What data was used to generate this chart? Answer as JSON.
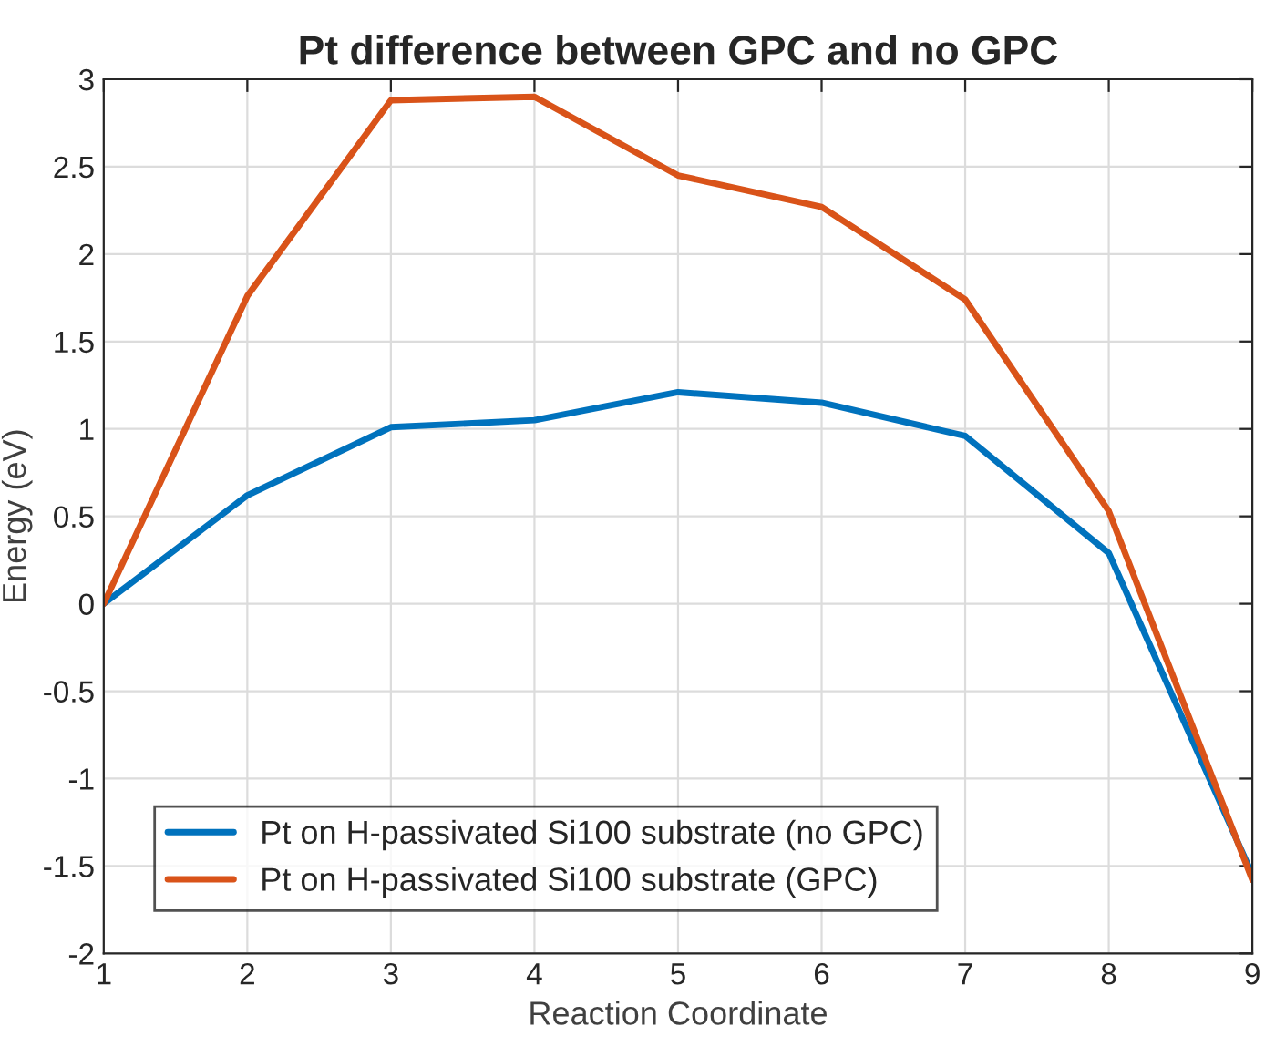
{
  "chart_data": {
    "type": "line",
    "title": "Pt difference between GPC and no GPC",
    "xlabel": "Reaction Coordinate",
    "ylabel": "Energy (eV)",
    "x": [
      1,
      2,
      3,
      4,
      5,
      6,
      7,
      8,
      9
    ],
    "series": [
      {
        "name": "Pt on H-passivated Si100 substrate (no GPC)",
        "color": "#0072bd",
        "values": [
          0,
          0.62,
          1.01,
          1.05,
          1.21,
          1.15,
          0.96,
          0.29,
          -1.55
        ]
      },
      {
        "name": "Pt on H-passivated Si100 substrate (GPC)",
        "color": "#d95319",
        "values": [
          0,
          1.76,
          2.88,
          2.9,
          2.45,
          2.27,
          1.74,
          0.53,
          -1.58
        ]
      }
    ],
    "xlim": [
      1,
      9
    ],
    "ylim": [
      -2,
      3
    ],
    "xticks": [
      1,
      2,
      3,
      4,
      5,
      6,
      7,
      8,
      9
    ],
    "yticks": [
      -2,
      -1.5,
      -1,
      -0.5,
      0,
      0.5,
      1,
      1.5,
      2,
      2.5,
      3
    ],
    "grid": true,
    "legend": "bottom left",
    "marker": "none",
    "line_style": "solid"
  }
}
